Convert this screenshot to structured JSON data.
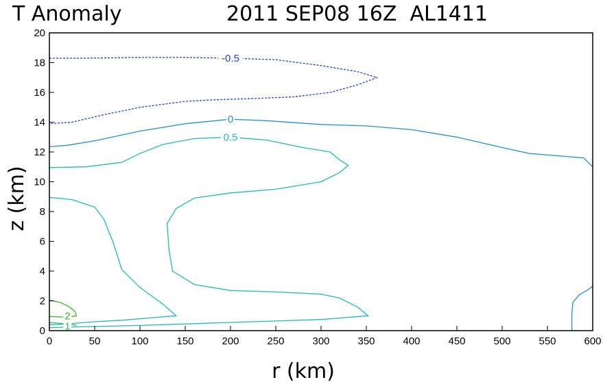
{
  "chart_data": {
    "type": "contour",
    "title_left": "T Anomaly",
    "title_right": "2011 SEP08 16Z  AL1411",
    "xlabel": "r (km)",
    "ylabel": "z (km)",
    "xlim": [
      0,
      600
    ],
    "ylim": [
      0,
      20
    ],
    "xticks": [
      0,
      50,
      100,
      150,
      200,
      250,
      300,
      350,
      400,
      450,
      500,
      550,
      600
    ],
    "yticks": [
      0,
      2,
      4,
      6,
      8,
      10,
      12,
      14,
      16,
      18,
      20
    ],
    "contours": [
      {
        "level": "-0.5",
        "color": "#1f3fd6",
        "dashed": true,
        "label_at": [
          200,
          18.3
        ],
        "points": [
          [
            0,
            18.3
          ],
          [
            40,
            18.3
          ],
          [
            100,
            18.35
          ],
          [
            150,
            18.35
          ],
          [
            200,
            18.3
          ],
          [
            250,
            18.2
          ],
          [
            300,
            17.8
          ],
          [
            340,
            17.4
          ],
          [
            362,
            17.0
          ],
          [
            340,
            16.5
          ],
          [
            310,
            16.0
          ],
          [
            270,
            15.7
          ],
          [
            230,
            15.6
          ],
          [
            180,
            15.5
          ],
          [
            150,
            15.4
          ],
          [
            100,
            15.0
          ],
          [
            60,
            14.5
          ],
          [
            25,
            14.0
          ],
          [
            0,
            13.9
          ]
        ]
      },
      {
        "level": "0",
        "color": "#1e8fe0",
        "dashed": false,
        "label_at": [
          200,
          14.2
        ],
        "points": [
          [
            0,
            12.35
          ],
          [
            20,
            12.45
          ],
          [
            50,
            12.75
          ],
          [
            100,
            13.4
          ],
          [
            150,
            13.9
          ],
          [
            200,
            14.2
          ],
          [
            240,
            14.1
          ],
          [
            300,
            13.85
          ],
          [
            350,
            13.75
          ],
          [
            400,
            13.5
          ],
          [
            450,
            13.0
          ],
          [
            500,
            12.3
          ],
          [
            530,
            11.9
          ],
          [
            560,
            11.75
          ],
          [
            590,
            11.6
          ],
          [
            600,
            11.0
          ]
        ]
      },
      {
        "level": "0",
        "color": "#1e8fe0",
        "dashed": false,
        "label_at": null,
        "points": [
          [
            577,
            0
          ],
          [
            577,
            1.1
          ],
          [
            578,
            1.9
          ],
          [
            585,
            2.4
          ],
          [
            595,
            2.75
          ],
          [
            600,
            3.0
          ]
        ]
      },
      {
        "level": "0.5",
        "color": "#1cbcb4",
        "dashed": false,
        "label_at": [
          200,
          13.0
        ],
        "points": [
          [
            0,
            10.95
          ],
          [
            40,
            11.0
          ],
          [
            80,
            11.3
          ],
          [
            100,
            11.9
          ],
          [
            125,
            12.5
          ],
          [
            160,
            12.9
          ],
          [
            200,
            13.0
          ],
          [
            240,
            12.8
          ],
          [
            280,
            12.3
          ],
          [
            310,
            12.0
          ],
          [
            320,
            11.5
          ],
          [
            330,
            11.1
          ],
          [
            320,
            10.6
          ],
          [
            300,
            10.0
          ],
          [
            250,
            9.5
          ],
          [
            200,
            9.25
          ],
          [
            160,
            8.9
          ],
          [
            140,
            8.2
          ],
          [
            130,
            7.2
          ],
          [
            132,
            5.5
          ],
          [
            136,
            4.0
          ],
          [
            160,
            3.1
          ],
          [
            200,
            2.7
          ],
          [
            250,
            2.6
          ],
          [
            300,
            2.45
          ],
          [
            320,
            2.2
          ],
          [
            340,
            1.6
          ],
          [
            352,
            1.0
          ],
          [
            300,
            0.75
          ],
          [
            250,
            0.65
          ],
          [
            200,
            0.55
          ],
          [
            150,
            0.45
          ],
          [
            100,
            0.35
          ],
          [
            50,
            0.28
          ],
          [
            0,
            0.2
          ]
        ]
      },
      {
        "level": "0.5",
        "color": "#1cbcb4",
        "dashed": false,
        "label_at": null,
        "points": [
          [
            0,
            8.95
          ],
          [
            25,
            8.8
          ],
          [
            50,
            8.3
          ],
          [
            60,
            7.5
          ],
          [
            70,
            6.0
          ],
          [
            80,
            4.1
          ],
          [
            100,
            2.9
          ],
          [
            125,
            1.8
          ],
          [
            140,
            1.0
          ],
          [
            110,
            0.85
          ],
          [
            80,
            0.7
          ],
          [
            50,
            0.6
          ],
          [
            20,
            0.45
          ],
          [
            0,
            0.4
          ]
        ]
      },
      {
        "level": "1",
        "color": "#26c24a",
        "dashed": false,
        "label_at": [
          20,
          0.3
        ],
        "points": [
          [
            0,
            0.55
          ],
          [
            10,
            0.5
          ],
          [
            20,
            0.45
          ],
          [
            30,
            0.35
          ]
        ]
      },
      {
        "level": "2",
        "color": "#2ec21c",
        "dashed": false,
        "label_at": [
          20,
          1.0
        ],
        "points": [
          [
            0,
            2.05
          ],
          [
            12,
            1.9
          ],
          [
            22,
            1.6
          ],
          [
            28,
            1.3
          ],
          [
            30,
            1.0
          ],
          [
            20,
            0.9
          ],
          [
            0,
            0.95
          ]
        ]
      }
    ]
  }
}
